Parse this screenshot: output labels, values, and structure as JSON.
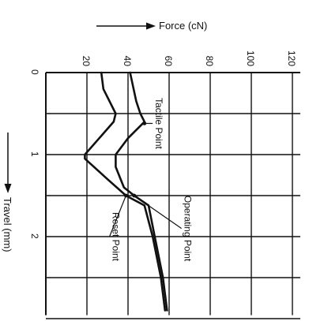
{
  "chart_data": {
    "type": "line",
    "force_axis": {
      "title": "Force (cN)",
      "ticks": [
        0,
        20,
        40,
        60,
        80,
        100,
        120
      ],
      "tick_labels": [
        "",
        "20",
        "40",
        "60",
        "80",
        "100",
        "120"
      ],
      "range": [
        0,
        120
      ]
    },
    "travel_axis": {
      "title": "Travel (mm)",
      "ticks": [
        0,
        0.5,
        1,
        1.5,
        2,
        2.5,
        3
      ],
      "tick_labels": [
        "0",
        "",
        "1",
        "",
        "2",
        "",
        ""
      ],
      "range": [
        0,
        2.9
      ]
    },
    "grid": true,
    "series": [
      {
        "points": [
          [
            0,
            41
          ],
          [
            0.35,
            44
          ],
          [
            0.5,
            46
          ],
          [
            0.6,
            48
          ],
          [
            0.8,
            40
          ],
          [
            1.0,
            34
          ],
          [
            1.15,
            34
          ],
          [
            1.4,
            38
          ],
          [
            1.5,
            43
          ],
          [
            1.62,
            50
          ],
          [
            2.0,
            53
          ],
          [
            2.5,
            57
          ],
          [
            2.9,
            59
          ]
        ]
      },
      {
        "points": [
          [
            0,
            27
          ],
          [
            0.2,
            28
          ],
          [
            0.5,
            34
          ],
          [
            0.6,
            33
          ],
          [
            0.8,
            26
          ],
          [
            1.0,
            19
          ],
          [
            1.05,
            19
          ],
          [
            1.3,
            30
          ],
          [
            1.5,
            39
          ],
          [
            1.62,
            48
          ],
          [
            2.0,
            52
          ],
          [
            2.5,
            56
          ],
          [
            2.9,
            58
          ]
        ]
      }
    ],
    "annotations": [
      {
        "text": "Tactile Point",
        "point": [
          0.62,
          48
        ],
        "label_anchor": [
          0.62,
          52
        ]
      },
      {
        "text": "Operating Point",
        "point": [
          1.5,
          43
        ],
        "label_anchor": [
          1.9,
          66
        ]
      },
      {
        "text": "Reset Point",
        "point": [
          1.5,
          39
        ],
        "label_anchor": [
          2.0,
          31
        ]
      }
    ]
  }
}
